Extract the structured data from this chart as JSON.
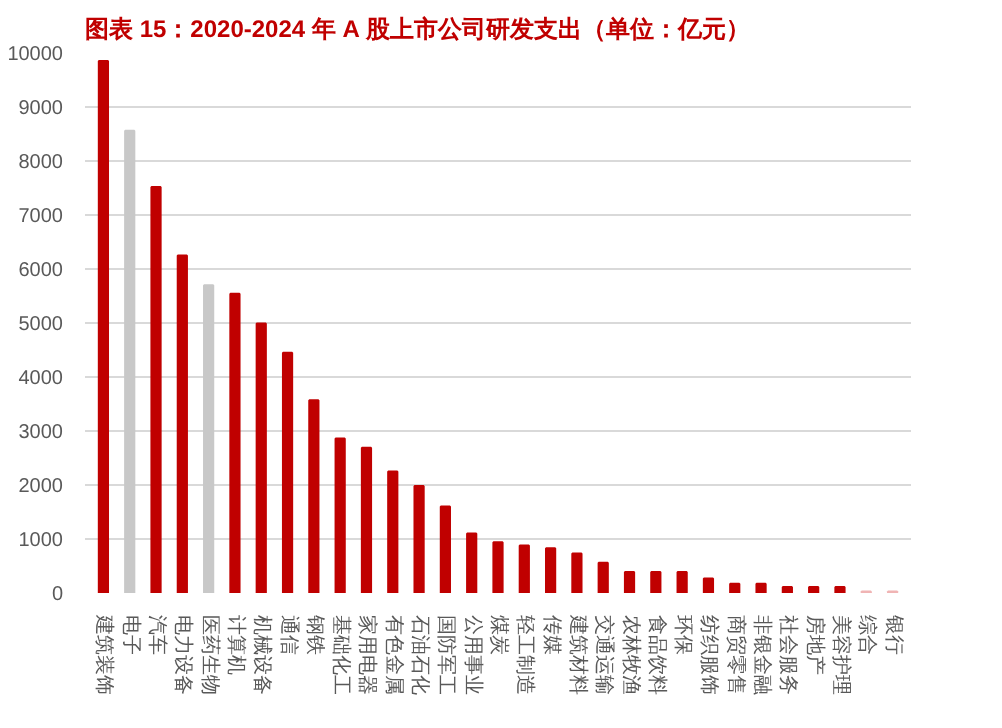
{
  "chart_data": {
    "type": "bar",
    "title": "图表 15：2020-2024 年 A 股上市公司研发支出（单位：亿元）",
    "categories": [
      "建筑装饰",
      "电子",
      "汽车",
      "电力设备",
      "医药生物",
      "计算机",
      "机械设备",
      "通信",
      "钢铁",
      "基础化工",
      "家用电器",
      "有色金属",
      "石油石化",
      "国防军工",
      "公用事业",
      "煤炭",
      "轻工制造",
      "传媒",
      "建筑材料",
      "交通运输",
      "农林牧渔",
      "食品饮料",
      "环保",
      "纺织服饰",
      "商贸零售",
      "非银金融",
      "社会服务",
      "房地产",
      "美容护理",
      "综合",
      "银行"
    ],
    "values": [
      9850,
      8560,
      7520,
      6250,
      5700,
      5540,
      4990,
      4450,
      3570,
      2860,
      2690,
      2250,
      1980,
      1600,
      1100,
      940,
      880,
      830,
      730,
      560,
      390,
      390,
      390,
      270,
      170,
      170,
      110,
      110,
      110,
      30,
      30
    ],
    "colors": [
      "#c00000",
      "#c8c8c8",
      "#c00000",
      "#c00000",
      "#c8c8c8",
      "#c00000",
      "#c00000",
      "#c00000",
      "#c00000",
      "#c00000",
      "#c00000",
      "#c00000",
      "#c00000",
      "#c00000",
      "#c00000",
      "#c00000",
      "#c00000",
      "#c00000",
      "#c00000",
      "#c00000",
      "#c00000",
      "#c00000",
      "#c00000",
      "#c00000",
      "#c00000",
      "#c00000",
      "#c00000",
      "#c00000",
      "#c00000",
      "#f0b4b4",
      "#f0b4b4"
    ],
    "ylim": [
      0,
      10000
    ],
    "yticks": [
      0,
      1000,
      2000,
      3000,
      4000,
      5000,
      6000,
      7000,
      8000,
      9000,
      10000
    ],
    "grid": "y"
  }
}
